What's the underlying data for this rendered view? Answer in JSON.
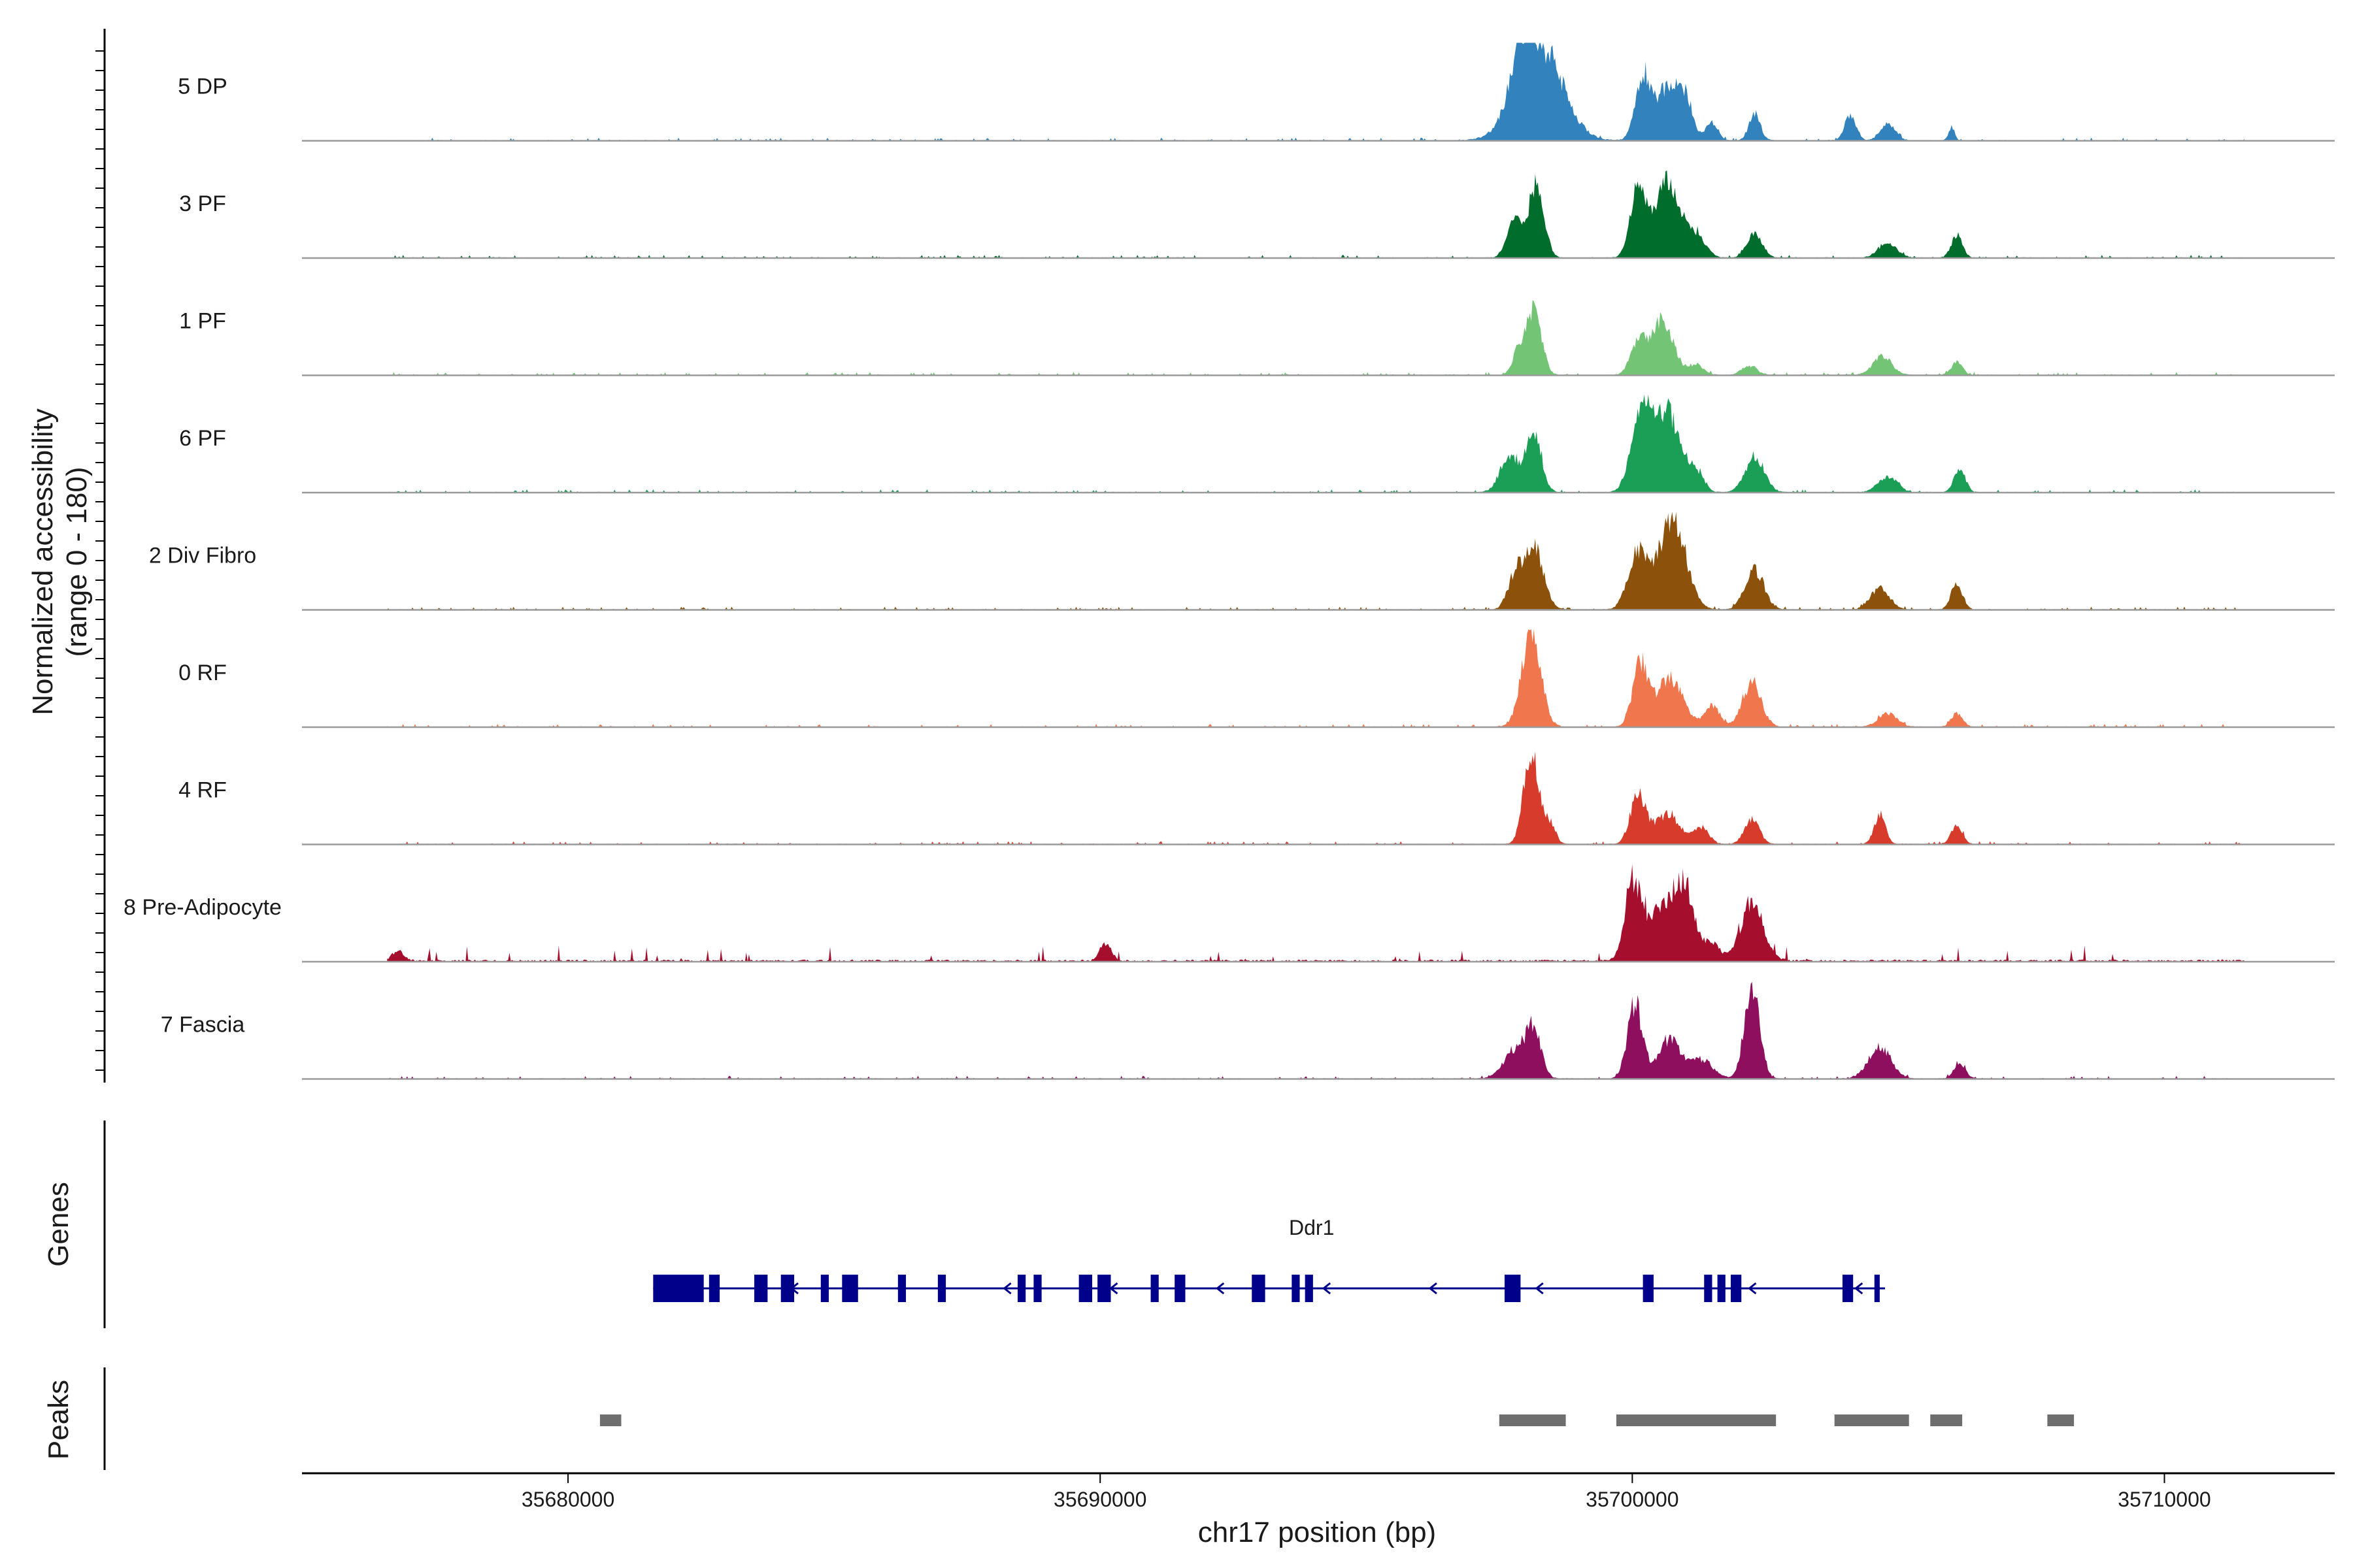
{
  "chart_data": {
    "type": "area",
    "title": "",
    "ylabel": "Normalized accessibility",
    "ylabel_range": "(range 0 - 180)",
    "xlabel": "chr17 position (bp)",
    "ylim": [
      0,
      180
    ],
    "xlim": [
      35675000,
      35713200
    ],
    "x_ticks": [
      35680000,
      35690000,
      35700000,
      35710000
    ],
    "x_tick_labels": [
      "35680000",
      "35690000",
      "35700000",
      "35710000"
    ],
    "tracks": [
      {
        "name": "5 DP",
        "color": "#3182bd",
        "peaks": [
          [
            35698250,
            0.6,
            180
          ],
          [
            35697900,
            0.25,
            80
          ],
          [
            35700200,
            0.2,
            120
          ],
          [
            35700650,
            0.3,
            95
          ],
          [
            35701000,
            0.2,
            70
          ],
          [
            35701500,
            0.15,
            35
          ],
          [
            35702300,
            0.15,
            50
          ],
          [
            35704100,
            0.15,
            45
          ],
          [
            35704800,
            0.2,
            30
          ],
          [
            35706000,
            0.08,
            25
          ]
        ]
      },
      {
        "name": "3 PF",
        "color": "#006d2c",
        "peaks": [
          [
            35697800,
            0.2,
            70
          ],
          [
            35698200,
            0.2,
            140
          ],
          [
            35700100,
            0.2,
            120
          ],
          [
            35700650,
            0.35,
            140
          ],
          [
            35701200,
            0.25,
            40
          ],
          [
            35702300,
            0.2,
            45
          ],
          [
            35704800,
            0.25,
            25
          ],
          [
            35706100,
            0.15,
            40
          ]
        ]
      },
      {
        "name": "1 PF",
        "color": "#74c476",
        "peaks": [
          [
            35698150,
            0.2,
            125
          ],
          [
            35697850,
            0.15,
            40
          ],
          [
            35700100,
            0.2,
            60
          ],
          [
            35700550,
            0.3,
            105
          ],
          [
            35701200,
            0.2,
            20
          ],
          [
            35702200,
            0.2,
            18
          ],
          [
            35704700,
            0.25,
            35
          ],
          [
            35706100,
            0.15,
            25
          ]
        ]
      },
      {
        "name": "6 PF",
        "color": "#1b9e55",
        "peaks": [
          [
            35697700,
            0.25,
            70
          ],
          [
            35698150,
            0.2,
            115
          ],
          [
            35700150,
            0.25,
            150
          ],
          [
            35700650,
            0.35,
            150
          ],
          [
            35701200,
            0.2,
            35
          ],
          [
            35702300,
            0.25,
            70
          ],
          [
            35704800,
            0.25,
            30
          ],
          [
            35706150,
            0.15,
            45
          ]
        ]
      },
      {
        "name": "2 Div Fibro",
        "color": "#8c510a",
        "peaks": [
          [
            35697800,
            0.2,
            60
          ],
          [
            35698150,
            0.25,
            120
          ],
          [
            35700100,
            0.25,
            110
          ],
          [
            35700750,
            0.35,
            175
          ],
          [
            35702300,
            0.25,
            75
          ],
          [
            35704650,
            0.25,
            40
          ],
          [
            35706100,
            0.15,
            50
          ]
        ]
      },
      {
        "name": "0 RF",
        "color": "#f0764d",
        "peaks": [
          [
            35698100,
            0.25,
            180
          ],
          [
            35700150,
            0.2,
            115
          ],
          [
            35700700,
            0.35,
            90
          ],
          [
            35701500,
            0.2,
            40
          ],
          [
            35702250,
            0.25,
            80
          ],
          [
            35704800,
            0.25,
            25
          ],
          [
            35706100,
            0.15,
            25
          ]
        ]
      },
      {
        "name": "4 RF",
        "color": "#d63b2c",
        "peaks": [
          [
            35698100,
            0.2,
            170
          ],
          [
            35698450,
            0.15,
            40
          ],
          [
            35700100,
            0.2,
            90
          ],
          [
            35700650,
            0.35,
            55
          ],
          [
            35701300,
            0.2,
            30
          ],
          [
            35702250,
            0.2,
            45
          ],
          [
            35704650,
            0.15,
            55
          ],
          [
            35706100,
            0.15,
            35
          ]
        ]
      },
      {
        "name": "8 Pre-Adipocyte",
        "color": "#a50f2d",
        "peaks": [
          [
            35700000,
            0.2,
            140
          ],
          [
            35700550,
            0.4,
            100
          ],
          [
            35701000,
            0.25,
            120
          ],
          [
            35702250,
            0.3,
            110
          ],
          [
            35701500,
            0.2,
            35
          ],
          [
            35690100,
            0.15,
            35
          ],
          [
            35676800,
            0.15,
            20
          ]
        ]
      },
      {
        "name": "7 Fascia",
        "color": "#8e0f5e",
        "peaks": [
          [
            35697800,
            0.3,
            55
          ],
          [
            35698150,
            0.2,
            85
          ],
          [
            35700050,
            0.2,
            140
          ],
          [
            35700700,
            0.3,
            75
          ],
          [
            35701300,
            0.3,
            35
          ],
          [
            35702250,
            0.2,
            175
          ],
          [
            35704650,
            0.3,
            60
          ],
          [
            35706150,
            0.15,
            30
          ]
        ]
      }
    ],
    "gene": {
      "name": "Ddr1",
      "start": 35681600,
      "end": 35704750,
      "strand": "-",
      "color": "#00008b",
      "exons": [
        [
          35681600,
          35682550
        ],
        [
          35682650,
          35682850
        ],
        [
          35683500,
          35683750
        ],
        [
          35684000,
          35684250
        ],
        [
          35684750,
          35684900
        ],
        [
          35685150,
          35685450
        ],
        [
          35686200,
          35686350
        ],
        [
          35686950,
          35687100
        ],
        [
          35688450,
          35688600
        ],
        [
          35688750,
          35688900
        ],
        [
          35689600,
          35689850
        ],
        [
          35689950,
          35690200
        ],
        [
          35690950,
          35691100
        ],
        [
          35691400,
          35691600
        ],
        [
          35692850,
          35693100
        ],
        [
          35693600,
          35693750
        ],
        [
          35693850,
          35694000
        ],
        [
          35697600,
          35697900
        ],
        [
          35700200,
          35700400
        ],
        [
          35701350,
          35701500
        ],
        [
          35701600,
          35701750
        ],
        [
          35701850,
          35702050
        ],
        [
          35703950,
          35704150
        ],
        [
          35704550,
          35704650
        ]
      ]
    },
    "peaks_track": [
      [
        35680600,
        35681000
      ],
      [
        35697500,
        35698750
      ],
      [
        35699700,
        35702700
      ],
      [
        35703800,
        35705200
      ],
      [
        35705600,
        35706200
      ],
      [
        35707800,
        35708300
      ]
    ]
  },
  "panel_titles": {
    "genes": "Genes",
    "peaks": "Peaks"
  }
}
